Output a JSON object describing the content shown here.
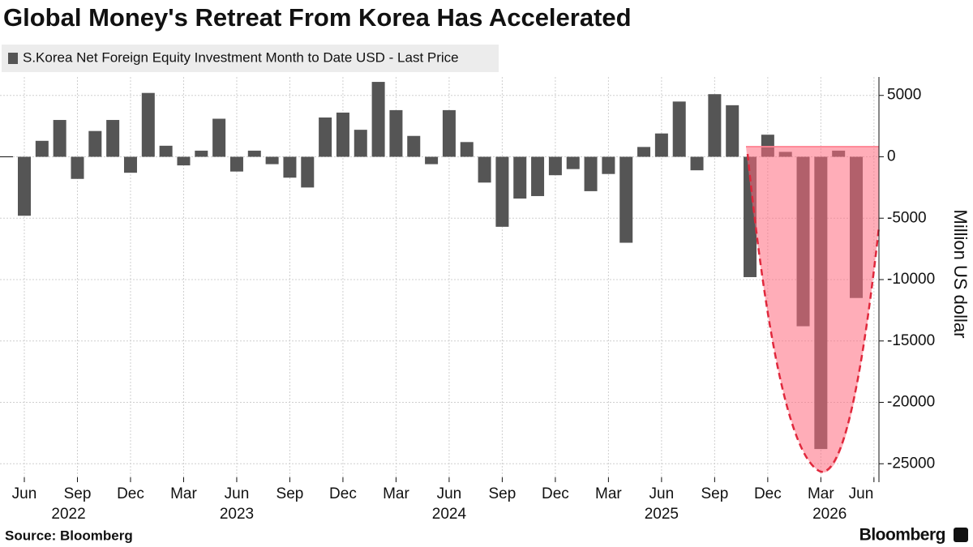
{
  "chart_data": {
    "type": "bar",
    "title": "Global Money's Retreat From Korea Has Accelerated",
    "legend": "S.Korea Net Foreign Equity Investment Month to Date USD - Last Price",
    "y_axis_label": "Million US dollar",
    "source": "Source: Bloomberg",
    "brand": "Bloomberg",
    "color": "#555555",
    "categories": [
      "Jun 2022",
      "Jul 2022",
      "Aug 2022",
      "Sep 2022",
      "Oct 2022",
      "Nov 2022",
      "Dec 2022",
      "Jan 2023",
      "Feb 2023",
      "Mar 2023",
      "Apr 2023",
      "May 2023",
      "Jun 2023",
      "Jul 2023",
      "Aug 2023",
      "Sep 2023",
      "Oct 2023",
      "Nov 2023",
      "Dec 2023",
      "Jan 2024",
      "Feb 2024",
      "Mar 2024",
      "Apr 2024",
      "May 2024",
      "Jun 2024",
      "Jul 2024",
      "Aug 2024",
      "Sep 2024",
      "Oct 2024",
      "Nov 2024",
      "Dec 2024",
      "Jan 2025",
      "Feb 2025",
      "Mar 2025",
      "Apr 2025",
      "May 2025",
      "Jun 2025",
      "Jul 2025",
      "Aug 2025",
      "Sep 2025",
      "Oct 2025",
      "Nov 2025",
      "Dec 2025",
      "Jan 2026",
      "Feb 2026",
      "Mar 2026",
      "Apr 2026",
      "May 2026"
    ],
    "values": [
      -4800,
      1300,
      3000,
      -1800,
      2100,
      3000,
      -1300,
      5200,
      900,
      -700,
      500,
      3100,
      -1200,
      500,
      -600,
      -1700,
      -2500,
      3200,
      3600,
      2200,
      6100,
      3800,
      1700,
      -600,
      3800,
      1200,
      -2100,
      -5700,
      -3400,
      -3200,
      -1500,
      -1000,
      -2800,
      -1400,
      -7000,
      800,
      1900,
      4500,
      -1100,
      5100,
      4200,
      -9800,
      1800,
      400,
      -13800,
      -23800,
      500,
      -11500
    ],
    "xticks": [
      {
        "value": 0,
        "label": "Jun"
      },
      {
        "value": 3,
        "label": "Sep"
      },
      {
        "value": 6,
        "label": "Dec"
      },
      {
        "value": 9,
        "label": "Mar"
      },
      {
        "value": 12,
        "label": "Jun"
      },
      {
        "value": 15,
        "label": "Sep"
      },
      {
        "value": 18,
        "label": "Dec"
      },
      {
        "value": 21,
        "label": "Mar"
      },
      {
        "value": 24,
        "label": "Jun"
      },
      {
        "value": 27,
        "label": "Sep"
      },
      {
        "value": 30,
        "label": "Dec"
      },
      {
        "value": 33,
        "label": "Mar"
      },
      {
        "value": 36,
        "label": "Jun"
      },
      {
        "value": 39,
        "label": "Sep"
      },
      {
        "value": 42,
        "label": "Dec"
      },
      {
        "value": 45,
        "label": "Mar"
      },
      {
        "value": 48,
        "label": "Jun"
      }
    ],
    "year_labels": [
      {
        "value": 2.5,
        "label": "2022"
      },
      {
        "value": 12,
        "label": "2023"
      },
      {
        "value": 24,
        "label": "2024"
      },
      {
        "value": 36,
        "label": "2025"
      },
      {
        "value": 45.5,
        "label": "2026"
      }
    ],
    "ylim": [
      -26500,
      6500
    ],
    "yticks": [
      5000,
      0,
      -5000,
      -10000,
      -15000,
      -20000,
      -25000
    ],
    "grid": true
  }
}
